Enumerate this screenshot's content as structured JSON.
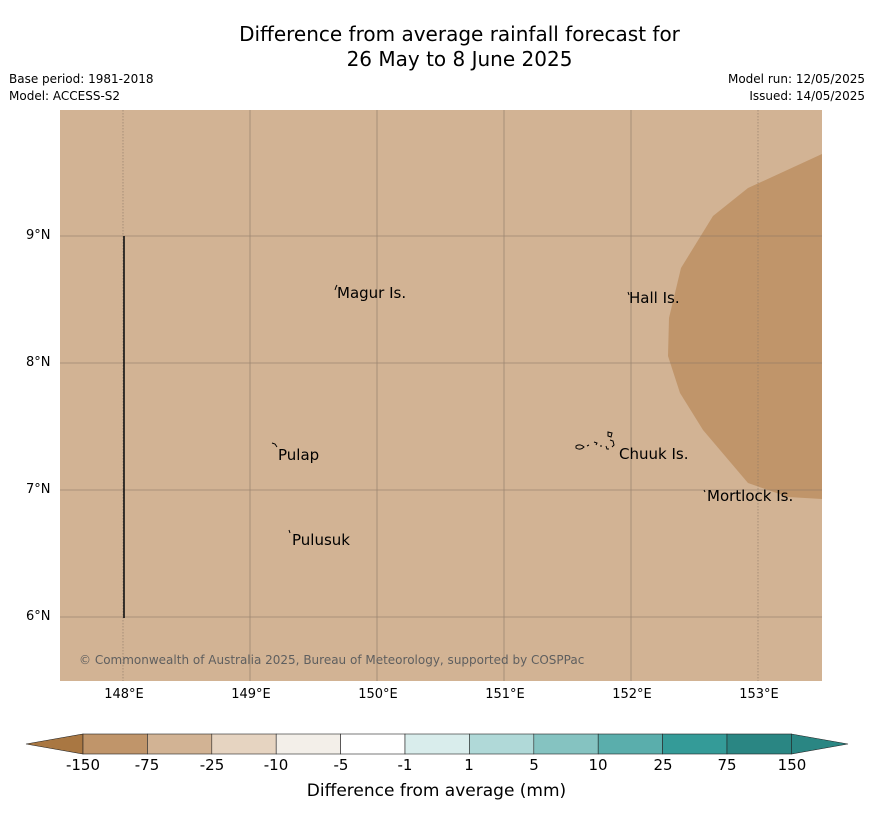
{
  "title": {
    "line1": "Difference from average rainfall forecast for",
    "line2": "26 May to 8 June 2025"
  },
  "meta": {
    "base_period": "Base period: 1981-2018",
    "model": "Model: ACCESS-S2",
    "model_run": "Model run: 12/05/2025",
    "issued": "Issued: 14/05/2025"
  },
  "map": {
    "background_color": "#d2b394",
    "anomaly_patch_color": "#c0956a",
    "y_ticks": [
      "9°N",
      "8°N",
      "7°N",
      "6°N"
    ],
    "x_ticks": [
      "148°E",
      "149°E",
      "150°E",
      "151°E",
      "152°E",
      "153°E"
    ],
    "places": [
      "Magur Is.",
      "Hall Is.",
      "Pulap",
      "Chuuk Is.",
      "Mortlock Is.",
      "Pulusuk"
    ],
    "copyright": "© Commonwealth of Australia 2025, Bureau of Meteorology, supported by COSPPac"
  },
  "colorbar": {
    "colors": [
      "#a97742",
      "#c0956a",
      "#d2b394",
      "#e6d4c1",
      "#f3efe9",
      "#ffffff",
      "#d9edec",
      "#b0d9d8",
      "#85c3c1",
      "#5aaeac",
      "#349b98",
      "#2a8683"
    ],
    "labels": [
      "-150",
      "-75",
      "-25",
      "-10",
      "-5",
      "-1",
      "1",
      "5",
      "10",
      "25",
      "75",
      "150"
    ],
    "title": "Difference from average (mm)"
  }
}
